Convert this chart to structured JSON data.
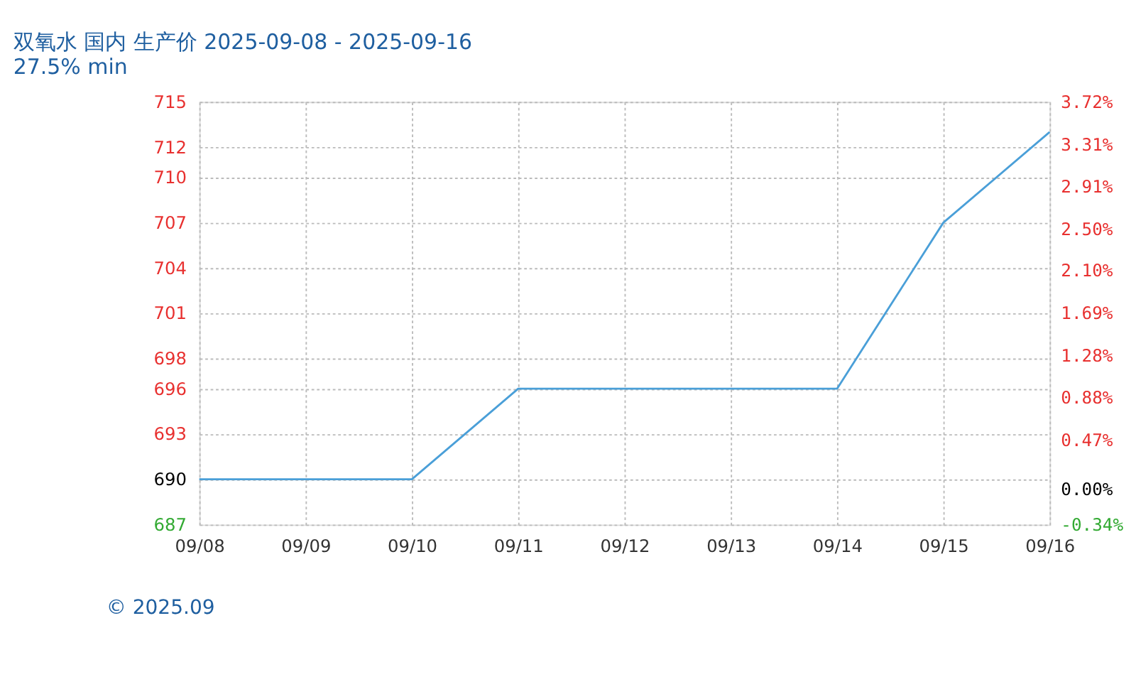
{
  "chart_data": {
    "type": "line",
    "title": "双氧水 国内 生产价 2025-09-08 - 2025-09-16",
    "subtitle": "27.5% min",
    "categories": [
      "09/08",
      "09/09",
      "09/10",
      "09/11",
      "09/12",
      "09/13",
      "09/14",
      "09/15",
      "09/16"
    ],
    "series": [
      {
        "color": "#4a9fd8",
        "values": [
          690,
          690,
          690,
          696,
          696,
          696,
          696,
          707,
          713
        ]
      }
    ],
    "ylim": [
      687,
      715
    ],
    "yticks": [
      687,
      690,
      693,
      696,
      698,
      701,
      704,
      707,
      710,
      712,
      715
    ],
    "y2lim": [
      -0.34,
      3.72
    ],
    "y2ticks": [
      {
        "value": -0.34,
        "label": "-0.34%"
      },
      {
        "value": 0,
        "label": "0.00%"
      },
      {
        "value": 0.47,
        "label": "0.47%"
      },
      {
        "value": 0.88,
        "label": "0.88%"
      },
      {
        "value": 1.28,
        "label": "1.28%"
      },
      {
        "value": 1.69,
        "label": "1.69%"
      },
      {
        "value": 2.1,
        "label": "2.10%"
      },
      {
        "value": 2.5,
        "label": "2.50%"
      },
      {
        "value": 2.91,
        "label": "2.91%"
      },
      {
        "value": 3.31,
        "label": "3.31%"
      },
      {
        "value": 3.72,
        "label": "3.72%"
      }
    ],
    "grid": true,
    "marker": "none",
    "line_style": "solid",
    "annotations": [
      "© 2025.09"
    ]
  }
}
